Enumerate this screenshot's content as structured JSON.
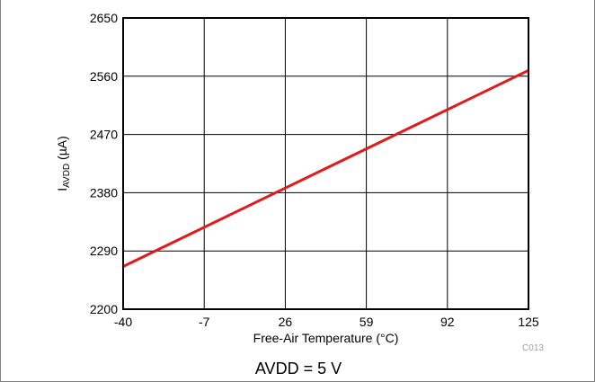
{
  "chart_data": {
    "type": "line",
    "xlabel": "Free-Air Temperature (°C)",
    "ylabel_main": "I",
    "ylabel_sub": "AVDD",
    "ylabel_unit": " (µA)",
    "x_ticks": [
      "-40",
      "-7",
      "26",
      "59",
      "92",
      "125"
    ],
    "y_ticks": [
      "2200",
      "2290",
      "2380",
      "2470",
      "2560",
      "2650"
    ],
    "xlim": [
      -40,
      125
    ],
    "ylim": [
      2200,
      2650
    ],
    "grid": true,
    "series": [
      {
        "color": "#e31a1c",
        "x": [
          -40,
          125
        ],
        "y": [
          2266,
          2569
        ]
      }
    ],
    "code": "C013"
  },
  "caption": "AVDD = 5 V"
}
